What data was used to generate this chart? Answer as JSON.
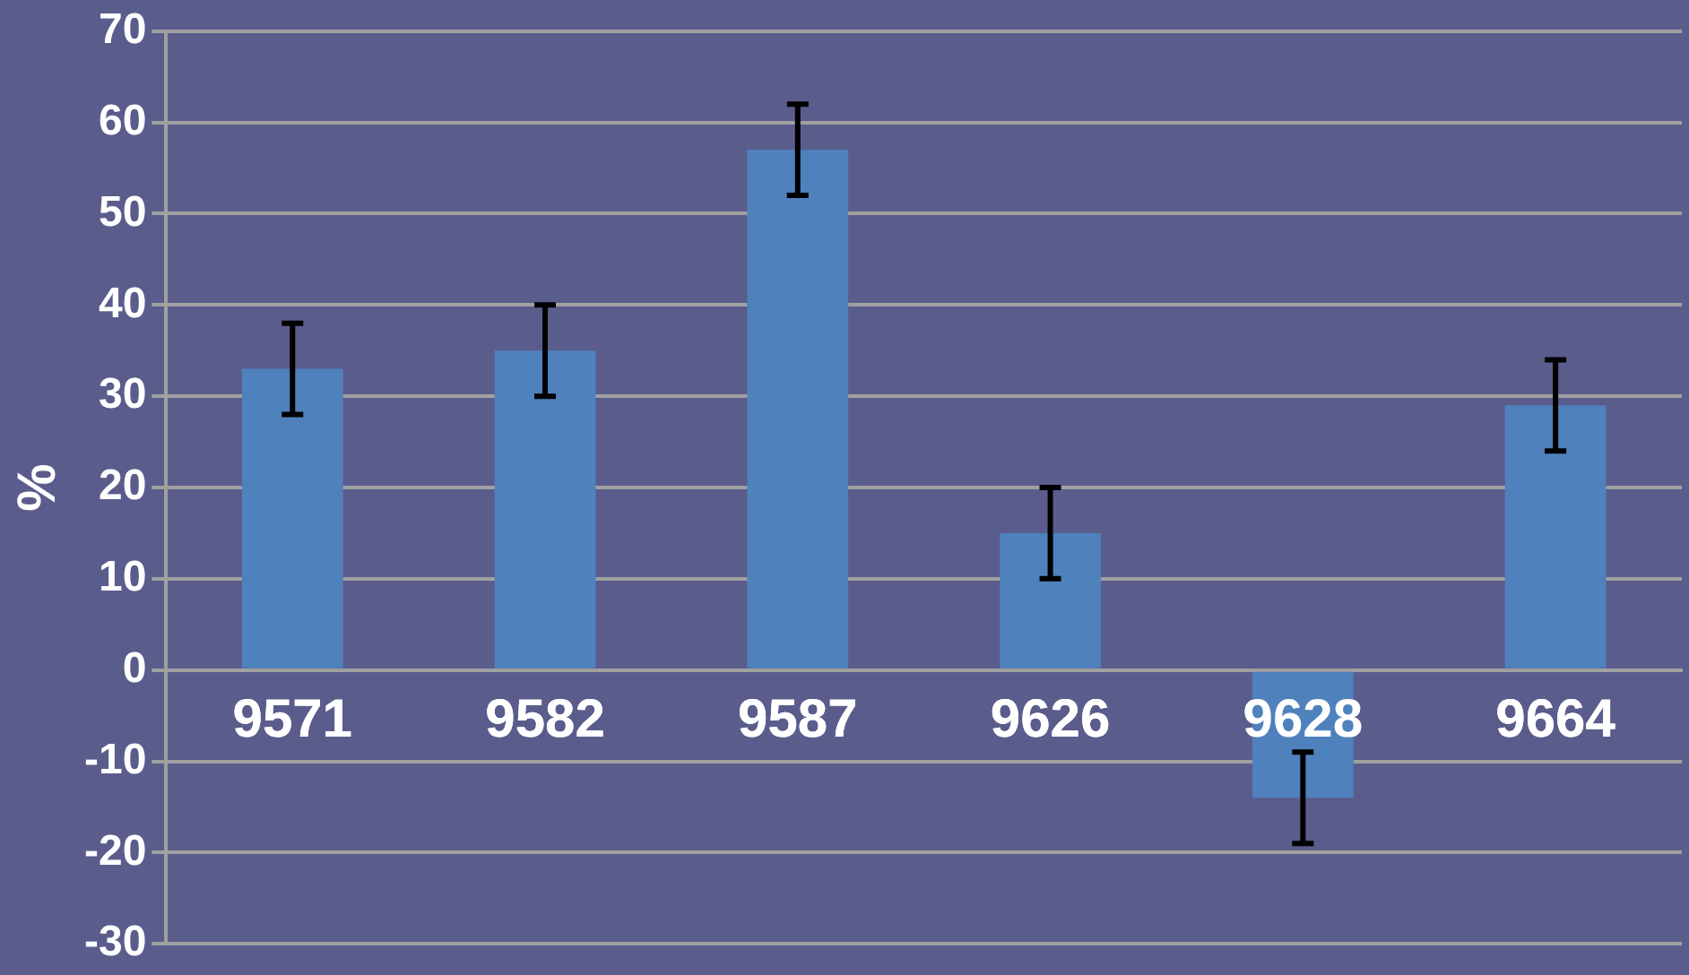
{
  "chart_data": {
    "type": "bar",
    "ylabel": "%",
    "categories": [
      "9571",
      "9582",
      "9587",
      "9626",
      "9628",
      "9664"
    ],
    "values": [
      33,
      35,
      57,
      15,
      -14,
      29
    ],
    "errors": [
      5,
      5,
      5,
      5,
      5,
      5
    ],
    "color": "#4f81bd",
    "ylim": [
      -30,
      70
    ],
    "yticks": [
      -30,
      -20,
      -10,
      0,
      10,
      20,
      30,
      40,
      50,
      60,
      70
    ],
    "grid": "y",
    "legend": false
  }
}
